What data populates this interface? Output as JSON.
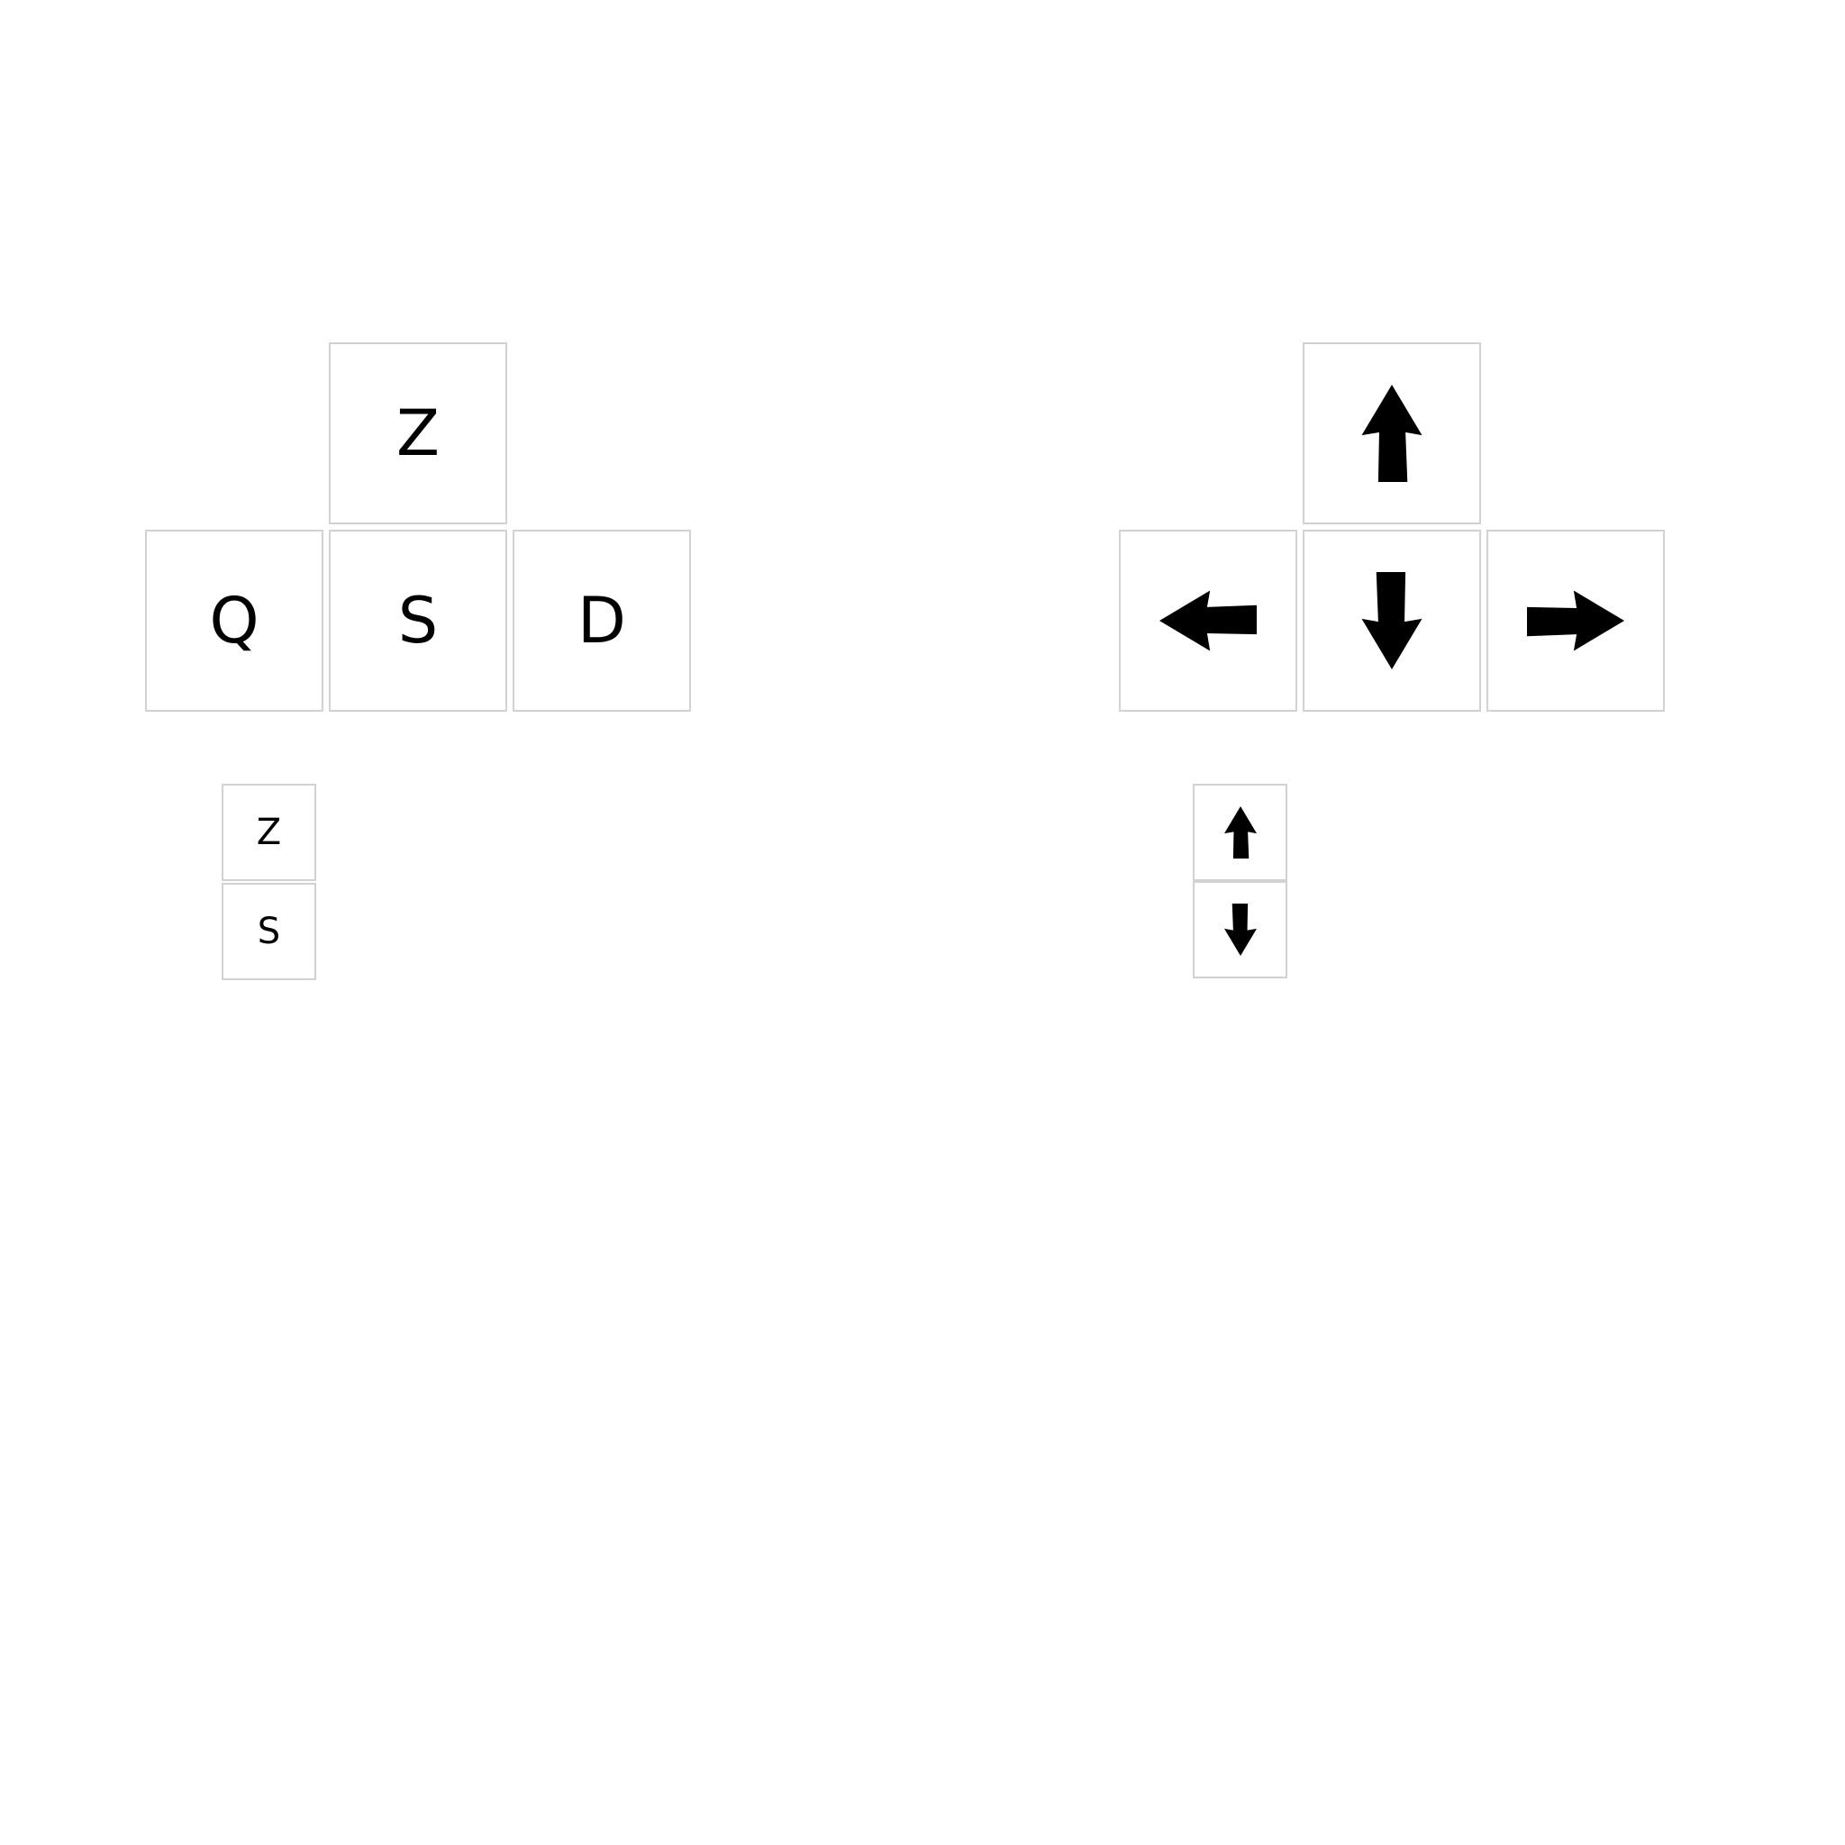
{
  "letter_keys": {
    "large": {
      "up": "Z",
      "left": "Q",
      "down": "S",
      "right": "D"
    },
    "small": {
      "up": "Z",
      "down": "S"
    }
  },
  "arrow_keys": {
    "large": {
      "up": "arrow-up-icon",
      "left": "arrow-left-icon",
      "down": "arrow-down-icon",
      "right": "arrow-right-icon"
    },
    "small": {
      "up": "arrow-up-icon",
      "down": "arrow-down-icon"
    }
  },
  "colors": {
    "key_border": "#d2d2d2",
    "key_fill": "#ffffff",
    "glyph": "#000000"
  }
}
